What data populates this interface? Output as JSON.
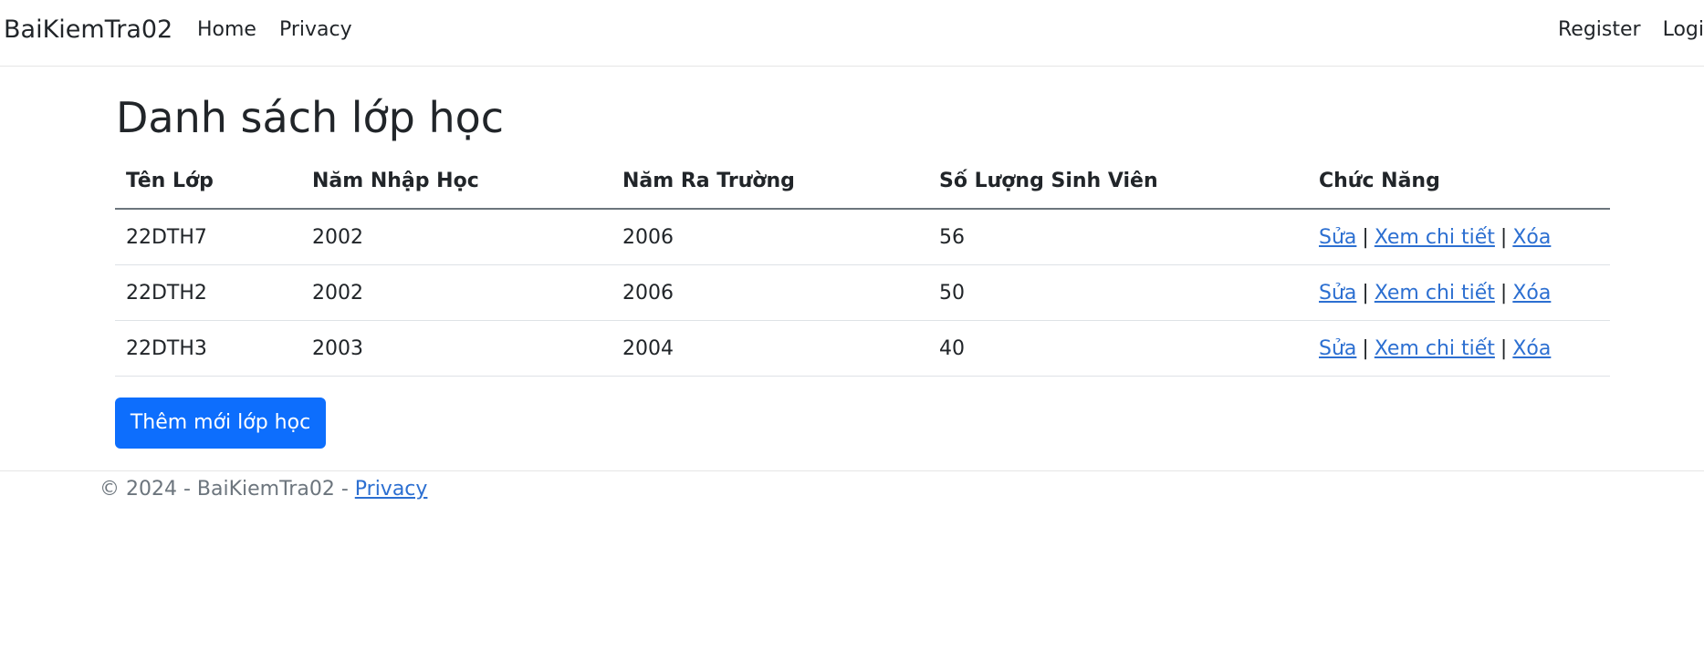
{
  "nav": {
    "brand": "BaiKiemTra02",
    "links": [
      {
        "label": "Home"
      },
      {
        "label": "Privacy"
      }
    ],
    "right_links": [
      {
        "label": "Register"
      },
      {
        "label": "Login"
      }
    ]
  },
  "main": {
    "title": "Danh sách lớp học",
    "table": {
      "headers": [
        "Tên Lớp",
        "Năm Nhập Học",
        "Năm Ra Trường",
        "Số Lượng Sinh Viên",
        "Chức Năng"
      ],
      "rows": [
        {
          "ten_lop": "22DTH7",
          "nam_nhap_hoc": "2002",
          "nam_ra_truong": "2006",
          "so_luong": "56"
        },
        {
          "ten_lop": "22DTH2",
          "nam_nhap_hoc": "2002",
          "nam_ra_truong": "2006",
          "so_luong": "50"
        },
        {
          "ten_lop": "22DTH3",
          "nam_nhap_hoc": "2003",
          "nam_ra_truong": "2004",
          "so_luong": "40"
        }
      ],
      "actions": {
        "edit": "Sửa",
        "details": "Xem chi tiết",
        "delete": "Xóa",
        "separator": "|"
      }
    },
    "add_button": "Thêm mới lớp học"
  },
  "footer": {
    "text": "© 2024 - BaiKiemTra02 -",
    "link": "Privacy"
  },
  "colors": {
    "primary": "#0d6efd",
    "link": "#2c6fd1",
    "text": "#212529",
    "muted": "#6c757d"
  }
}
